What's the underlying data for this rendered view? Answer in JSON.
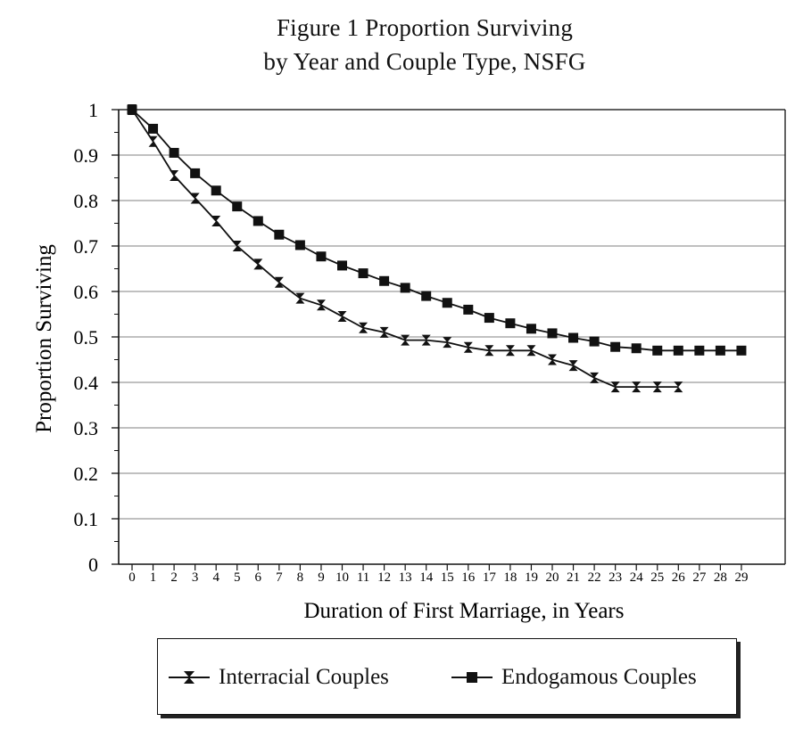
{
  "chart_data": {
    "type": "line",
    "title": "Figure 1  Proportion Surviving",
    "subtitle": "by Year and Couple Type, NSFG",
    "xlabel": "Duration of First Marriage, in Years",
    "ylabel": "Proportion Surviving",
    "xlim": [
      0,
      29
    ],
    "ylim": [
      0,
      1
    ],
    "x_ticks": [
      "0",
      "1",
      "2",
      "3",
      "4",
      "5",
      "6",
      "7",
      "8",
      "9",
      "10",
      "11",
      "12",
      "13",
      "14",
      "15",
      "16",
      "17",
      "18",
      "19",
      "20",
      "21",
      "22",
      "23",
      "24",
      "25",
      "26",
      "27",
      "28",
      "29"
    ],
    "y_ticks": [
      "0",
      "0.1",
      "0.2",
      "0.3",
      "0.4",
      "0.5",
      "0.6",
      "0.7",
      "0.8",
      "0.9",
      "1"
    ],
    "grid": "horizontal",
    "legend_position": "bottom",
    "series": [
      {
        "name": "Interracial Couples",
        "marker": "x-bar",
        "x": [
          0,
          1,
          2,
          3,
          4,
          5,
          6,
          7,
          8,
          9,
          10,
          11,
          12,
          13,
          14,
          15,
          16,
          17,
          18,
          19,
          20,
          21,
          22,
          23,
          24,
          25,
          26
        ],
        "values": [
          1.0,
          0.93,
          0.855,
          0.805,
          0.755,
          0.7,
          0.66,
          0.62,
          0.585,
          0.57,
          0.545,
          0.52,
          0.51,
          0.493,
          0.493,
          0.488,
          0.477,
          0.47,
          0.47,
          0.47,
          0.45,
          0.437,
          0.41,
          0.39,
          0.39,
          0.39,
          0.39
        ]
      },
      {
        "name": "Endogamous Couples",
        "marker": "square",
        "x": [
          0,
          1,
          2,
          3,
          4,
          5,
          6,
          7,
          8,
          9,
          10,
          11,
          12,
          13,
          14,
          15,
          16,
          17,
          18,
          19,
          20,
          21,
          22,
          23,
          24,
          25,
          26,
          27,
          28,
          29
        ],
        "values": [
          1.0,
          0.958,
          0.905,
          0.86,
          0.822,
          0.787,
          0.755,
          0.725,
          0.702,
          0.677,
          0.657,
          0.64,
          0.623,
          0.608,
          0.59,
          0.575,
          0.56,
          0.542,
          0.53,
          0.518,
          0.508,
          0.498,
          0.49,
          0.478,
          0.475,
          0.47,
          0.47,
          0.47,
          0.47,
          0.47
        ]
      }
    ]
  },
  "legend": {
    "interracial_label": "Interracial Couples",
    "endogamous_label": "Endogamous Couples"
  }
}
